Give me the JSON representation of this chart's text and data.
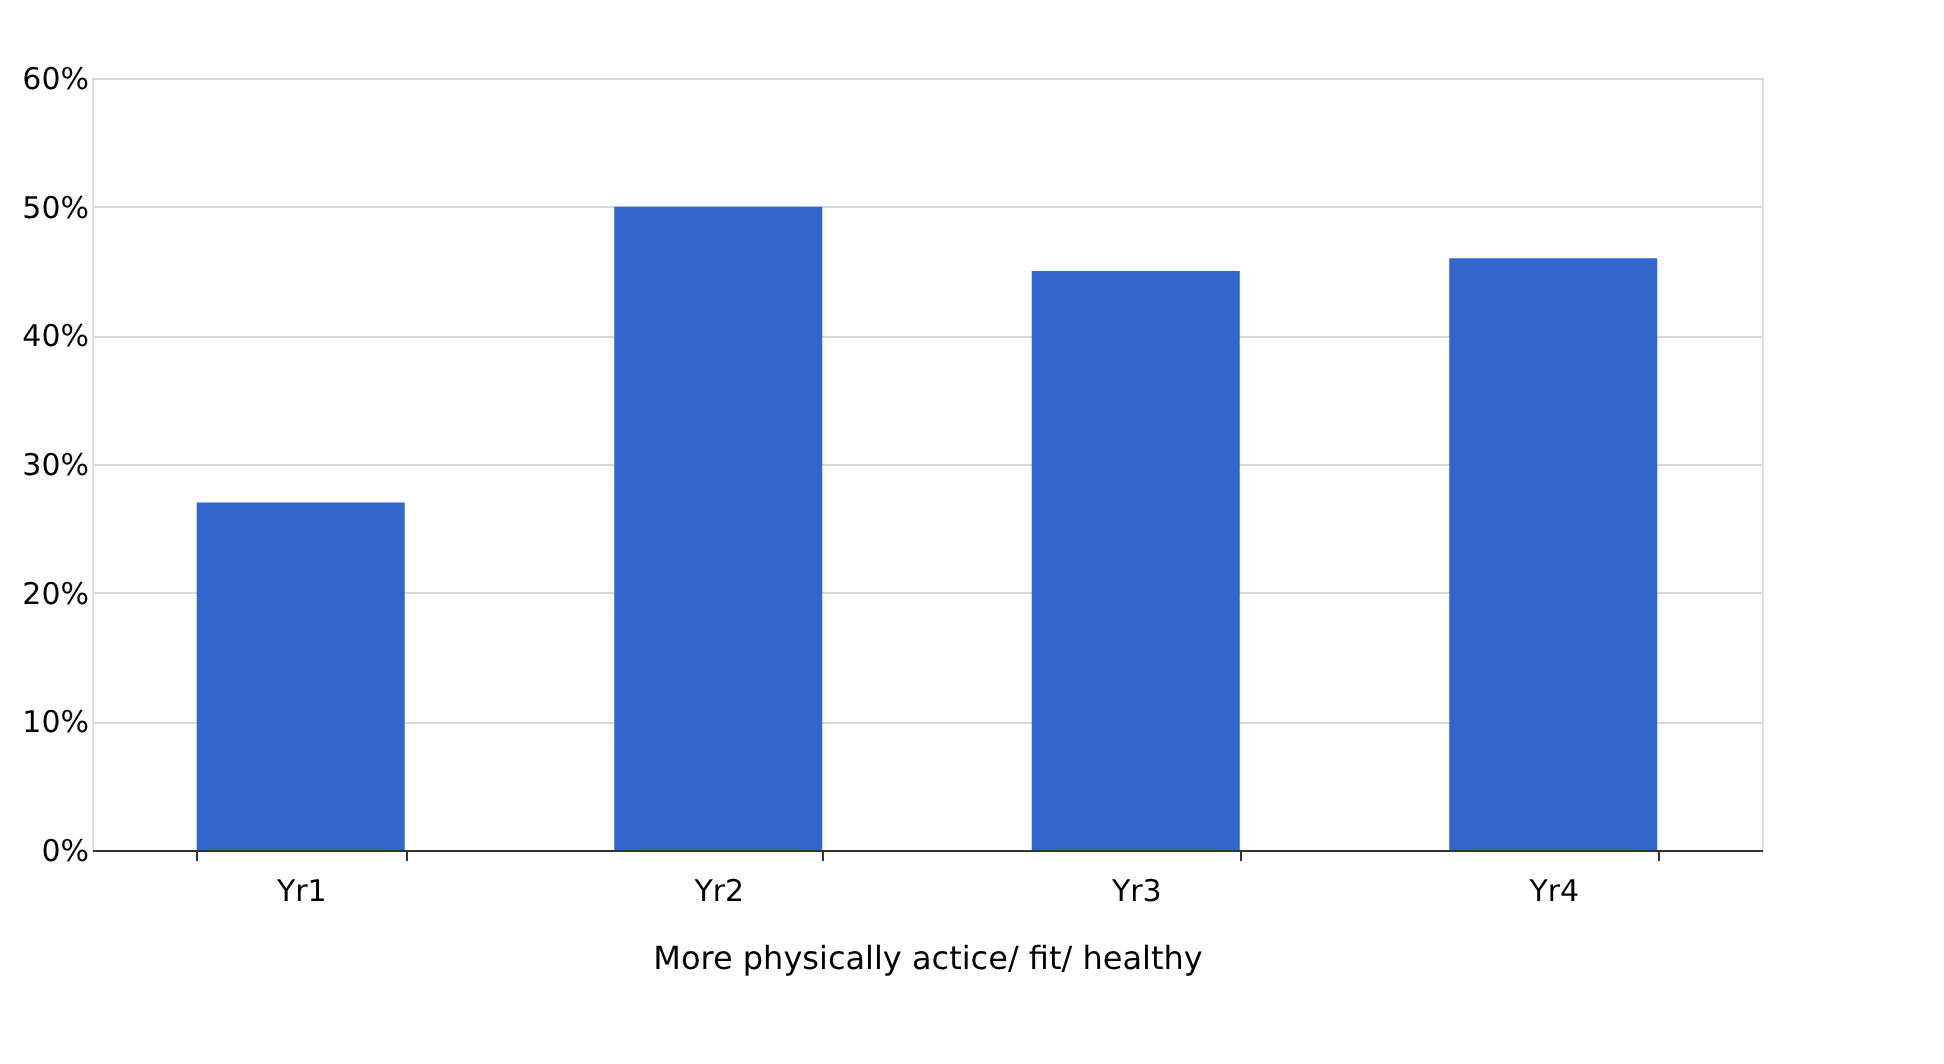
{
  "chart_data": {
    "type": "bar",
    "xlabel": "More physically actice/ fit/ healthy",
    "categories": [
      "Yr1",
      "Yr2",
      "Yr3",
      "Yr4"
    ],
    "values": [
      27,
      50,
      45,
      46
    ],
    "color": "#3366cc",
    "ylim": [
      0,
      60
    ],
    "yticks": [
      {
        "value": 0,
        "label": "0%"
      },
      {
        "value": 10,
        "label": "10%"
      },
      {
        "value": 20,
        "label": "20%"
      },
      {
        "value": 30,
        "label": "30%"
      },
      {
        "value": 40,
        "label": "40%"
      },
      {
        "value": 50,
        "label": "50%"
      },
      {
        "value": 60,
        "label": "60%"
      }
    ],
    "grid": "y"
  }
}
